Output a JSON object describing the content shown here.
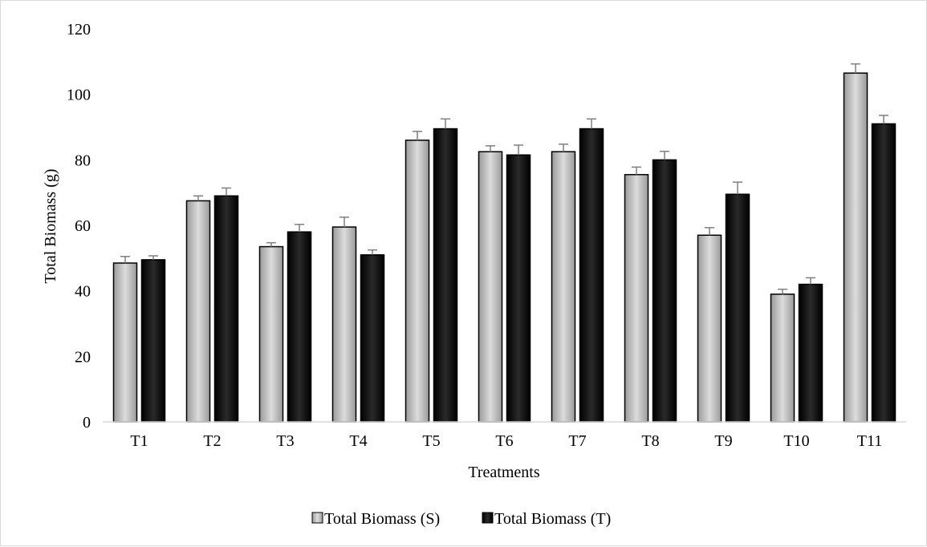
{
  "chart_data": {
    "type": "bar",
    "title": "",
    "xlabel": "Treatments",
    "ylabel": "Total Biomass (g)",
    "ylim": [
      0,
      120
    ],
    "yticks": [
      0,
      20,
      40,
      60,
      80,
      100,
      120
    ],
    "grid": false,
    "legend_position": "bottom",
    "categories": [
      "T1",
      "T2",
      "T3",
      "T4",
      "T5",
      "T6",
      "T7",
      "T8",
      "T9",
      "T10",
      "T11"
    ],
    "series": [
      {
        "name": "Total Biomass (S)",
        "color": "#c8c8c8",
        "values": [
          48.5,
          67.5,
          53.5,
          59.5,
          86,
          82.5,
          82.5,
          75.5,
          57,
          39,
          106.5
        ],
        "errors": [
          2,
          1.5,
          1.2,
          3,
          2.7,
          1.8,
          2.3,
          2.3,
          2.3,
          1.5,
          2.8
        ]
      },
      {
        "name": "Total Biomass (T)",
        "color": "#0a0a0a",
        "values": [
          49.5,
          69,
          58,
          51,
          89.5,
          81.5,
          89.5,
          80,
          69.5,
          42,
          91
        ],
        "errors": [
          1.2,
          2.4,
          2.3,
          1.5,
          3,
          3,
          3,
          2.6,
          3.7,
          2,
          2.6
        ]
      }
    ]
  }
}
